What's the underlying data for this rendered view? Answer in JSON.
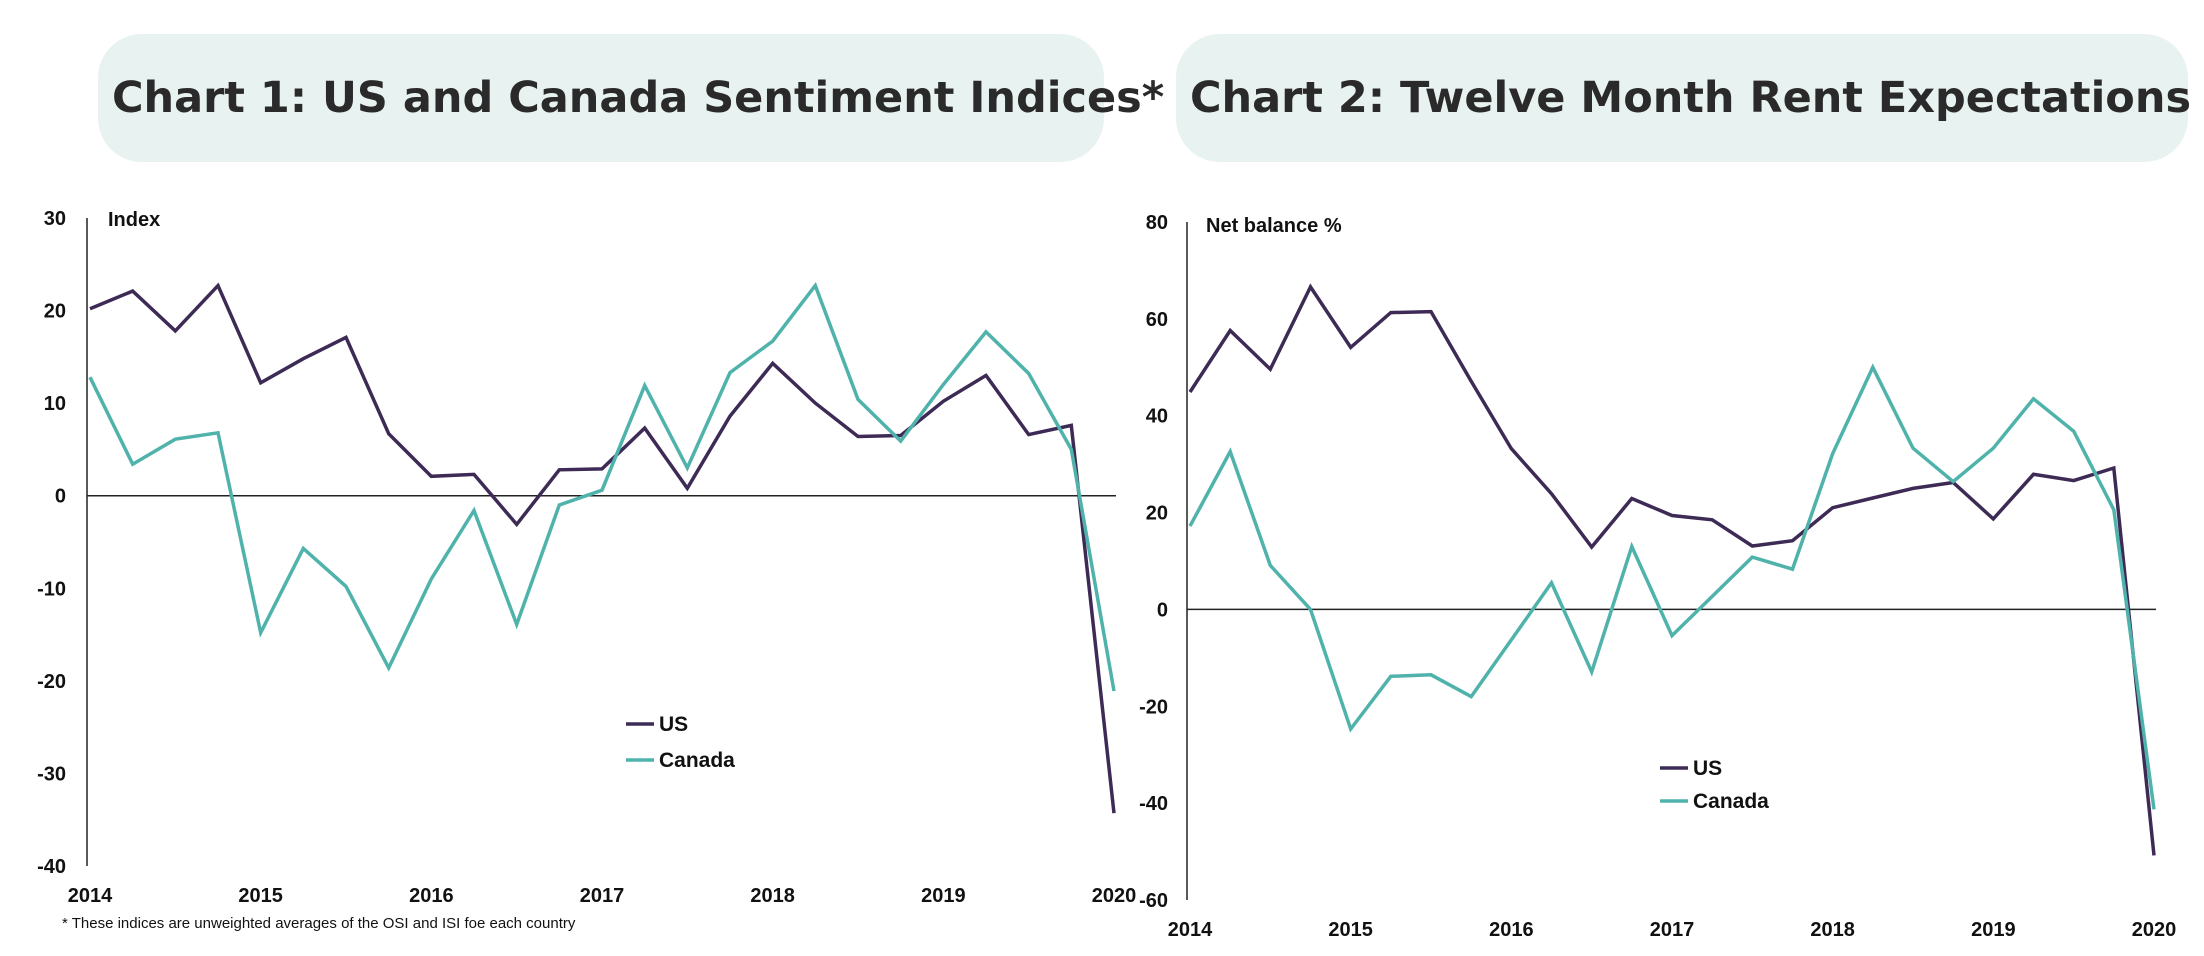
{
  "colors": {
    "us": "#3d2b56",
    "canada": "#4fb3ab",
    "title_bg": "#e8f2f0",
    "axis": "#222222"
  },
  "footnote": "* These indices are unweighted averages of the OSI and ISI foe each country",
  "chart_data": [
    {
      "type": "line",
      "title": "Chart 1: US and Canada Sentiment Indices*",
      "ylabel": "Index",
      "ylim": [
        -40,
        30
      ],
      "yticks": [
        30,
        20,
        10,
        0,
        -10,
        -20,
        -30,
        -40
      ],
      "xlim": [
        2014,
        2020
      ],
      "xticks": [
        "2014",
        "2015",
        "2016",
        "2017",
        "2018",
        "2019",
        "2020"
      ],
      "legend_position": "lower-center",
      "x": [
        2014.0,
        2014.25,
        2014.5,
        2014.75,
        2015.0,
        2015.25,
        2015.5,
        2015.75,
        2016.0,
        2016.25,
        2016.5,
        2016.75,
        2017.0,
        2017.25,
        2017.5,
        2017.75,
        2018.0,
        2018.25,
        2018.5,
        2018.75,
        2019.0,
        2019.25,
        2019.5,
        2019.75,
        2020.0
      ],
      "series": [
        {
          "name": "US",
          "color_key": "us",
          "values": [
            20.2,
            22.1,
            17.8,
            22.7,
            12.2,
            14.8,
            17.1,
            6.7,
            2.1,
            2.3,
            -3.1,
            2.8,
            2.9,
            7.3,
            0.8,
            8.6,
            14.3,
            10.0,
            6.4,
            6.5,
            10.2,
            13.0,
            6.6,
            7.6,
            -34.3
          ]
        },
        {
          "name": "Canada",
          "color_key": "canada",
          "values": [
            12.8,
            3.4,
            6.1,
            6.8,
            -14.8,
            -5.7,
            -9.8,
            -18.6,
            -9.0,
            -1.6,
            -13.9,
            -1.0,
            0.6,
            11.9,
            3.0,
            13.3,
            16.7,
            22.7,
            10.4,
            5.9,
            12.0,
            17.7,
            13.2,
            5.0,
            -21.1
          ]
        }
      ]
    },
    {
      "type": "line",
      "title": "Chart 2: Twelve Month Rent Expectations",
      "ylabel": "Net balance %",
      "ylim": [
        -60,
        80
      ],
      "yticks": [
        80,
        60,
        40,
        20,
        0,
        -20,
        -40,
        -60
      ],
      "xlim": [
        2014,
        2020
      ],
      "xticks": [
        "2014",
        "2015",
        "2016",
        "2017",
        "2018",
        "2019",
        "2020"
      ],
      "legend_position": "lower-center",
      "x": [
        2014.0,
        2014.25,
        2014.5,
        2014.75,
        2015.0,
        2015.25,
        2015.5,
        2015.75,
        2016.0,
        2016.25,
        2016.5,
        2016.75,
        2017.0,
        2017.25,
        2017.5,
        2017.75,
        2018.0,
        2018.25,
        2018.5,
        2018.75,
        2019.0,
        2019.25,
        2019.5,
        2019.75,
        2020.0
      ],
      "series": [
        {
          "name": "US",
          "color_key": "us",
          "values": [
            44.9,
            57.6,
            49.6,
            66.6,
            54.1,
            61.3,
            61.5,
            47.1,
            33.2,
            23.9,
            12.9,
            22.9,
            19.4,
            18.5,
            13.1,
            14.2,
            21.0,
            23.0,
            25.0,
            26.2,
            18.7,
            27.9,
            26.6,
            29.2,
            -50.8
          ]
        },
        {
          "name": "Canada",
          "color_key": "canada",
          "values": [
            17.2,
            32.6,
            9.1,
            0.0,
            -24.7,
            -13.8,
            -13.5,
            -18.0,
            -6.3,
            5.5,
            -12.9,
            13.0,
            -5.4,
            2.7,
            10.8,
            8.3,
            32.2,
            50.0,
            33.3,
            26.4,
            33.3,
            43.5,
            36.8,
            20.6,
            -41.3
          ]
        }
      ]
    }
  ]
}
